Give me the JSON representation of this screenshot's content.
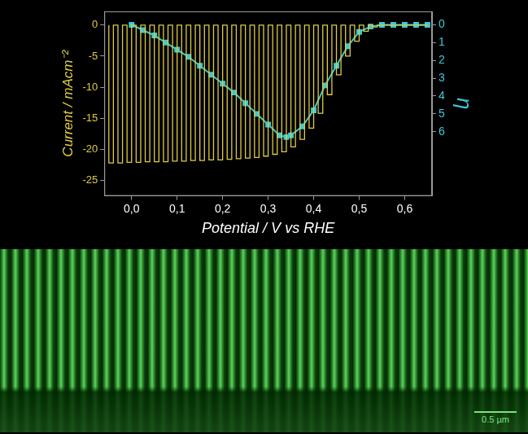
{
  "chart_data": {
    "type": "line",
    "x_label": "Potential / V vs RHE",
    "y_label": "Current / mAcm⁻²",
    "y2_label": "η",
    "xlim": [
      -0.06,
      0.66
    ],
    "xticks": [
      {
        "value": 0.0,
        "label": "0,0"
      },
      {
        "value": 0.1,
        "label": "0,1"
      },
      {
        "value": 0.2,
        "label": "0,2"
      },
      {
        "value": 0.3,
        "label": "0,3"
      },
      {
        "value": 0.4,
        "label": "0,4"
      },
      {
        "value": 0.5,
        "label": "0,5"
      },
      {
        "value": 0.6,
        "label": "0,6"
      }
    ],
    "ylim": [
      -27.5,
      2.2
    ],
    "yticks": [
      -25,
      -20,
      -15,
      -10,
      -5,
      0
    ],
    "y2lim": [
      9.6,
      -0.75
    ],
    "y2ticks": [
      0,
      1,
      2,
      3,
      4,
      5,
      6
    ],
    "grid": false,
    "series": [
      {
        "color": "#e0cc45",
        "marker": "none",
        "line_style": "solid",
        "x": [
          -0.05,
          -0.05,
          -0.04,
          -0.04,
          -0.03,
          -0.03,
          -0.02,
          -0.02,
          -0.01,
          -0.01,
          0.0,
          0.0,
          0.01,
          0.01,
          0.02,
          0.02,
          0.03,
          0.03,
          0.04,
          0.04,
          0.05,
          0.05,
          0.06,
          0.06,
          0.07,
          0.07,
          0.08,
          0.08,
          0.09,
          0.09,
          0.1,
          0.1,
          0.11,
          0.11,
          0.12,
          0.12,
          0.13,
          0.13,
          0.14,
          0.14,
          0.15,
          0.15,
          0.16,
          0.16,
          0.17,
          0.17,
          0.18,
          0.18,
          0.19,
          0.19,
          0.2,
          0.2,
          0.21,
          0.21,
          0.22,
          0.22,
          0.23,
          0.23,
          0.24,
          0.24,
          0.25,
          0.25,
          0.26,
          0.26,
          0.27,
          0.27,
          0.28,
          0.28,
          0.29,
          0.29,
          0.3,
          0.3,
          0.31,
          0.31,
          0.32,
          0.32,
          0.33,
          0.33,
          0.34,
          0.34,
          0.35,
          0.35,
          0.36,
          0.36,
          0.37,
          0.37,
          0.38,
          0.38,
          0.39,
          0.39,
          0.4,
          0.4,
          0.41,
          0.41,
          0.42,
          0.42,
          0.43,
          0.43,
          0.44,
          0.44,
          0.45,
          0.45,
          0.46,
          0.46,
          0.47,
          0.47,
          0.48,
          0.48,
          0.49,
          0.49,
          0.5,
          0.5,
          0.51,
          0.51,
          0.52,
          0.52,
          0.53,
          0.53,
          0.54,
          0.54,
          0.65
        ],
        "values": [
          0,
          -22.2,
          -22.2,
          0,
          0,
          -22.2,
          -22.2,
          0,
          0,
          -22.1,
          -22.1,
          0,
          0,
          -22.1,
          -22.1,
          0,
          0,
          -22.0,
          -22.0,
          0,
          0,
          -22.0,
          -22.0,
          0,
          0,
          -22.0,
          -22.0,
          0,
          0,
          -21.9,
          -21.9,
          0,
          0,
          -21.9,
          -21.9,
          0,
          0,
          -21.8,
          -21.8,
          0,
          0,
          -21.8,
          -21.8,
          0,
          0,
          -21.7,
          -21.7,
          0,
          0,
          -21.7,
          -21.7,
          0,
          0,
          -21.6,
          -21.6,
          0,
          0,
          -21.5,
          -21.5,
          0,
          0,
          -21.4,
          -21.4,
          0,
          0,
          -21.3,
          -21.3,
          0,
          0,
          -21.1,
          -21.1,
          0,
          0,
          -20.8,
          -20.8,
          0,
          0,
          -20.4,
          -20.4,
          0,
          0,
          -19.6,
          -19.6,
          0,
          0,
          -18.4,
          -18.4,
          0,
          0,
          -16.6,
          -16.6,
          0,
          0,
          -14.2,
          -14.2,
          0,
          0,
          -11.2,
          -11.2,
          0,
          0,
          -8.0,
          -8.0,
          0,
          0,
          -5.0,
          -5.0,
          0,
          0,
          -2.6,
          -2.6,
          0,
          0,
          -1.0,
          -1.0,
          0,
          0,
          -0.3,
          -0.3,
          0,
          0
        ]
      },
      {
        "color": "#3ec8d8",
        "marker": "square",
        "line_style": "solid",
        "axis": "y2",
        "x": [
          0.0,
          0.025,
          0.05,
          0.075,
          0.1,
          0.125,
          0.15,
          0.175,
          0.2,
          0.225,
          0.25,
          0.275,
          0.3,
          0.325,
          0.34,
          0.35,
          0.375,
          0.4,
          0.425,
          0.45,
          0.475,
          0.5,
          0.525,
          0.55,
          0.575,
          0.6,
          0.625,
          0.65
        ],
        "values": [
          0,
          0.3,
          0.6,
          1.0,
          1.4,
          1.8,
          2.3,
          2.8,
          3.3,
          3.8,
          4.4,
          5.0,
          5.6,
          6.2,
          6.3,
          6.2,
          5.7,
          4.8,
          3.4,
          2.3,
          1.2,
          0.4,
          0.1,
          0,
          0,
          0,
          0,
          0
        ]
      }
    ]
  },
  "image": {
    "scale_bar": "0.5 µm"
  }
}
